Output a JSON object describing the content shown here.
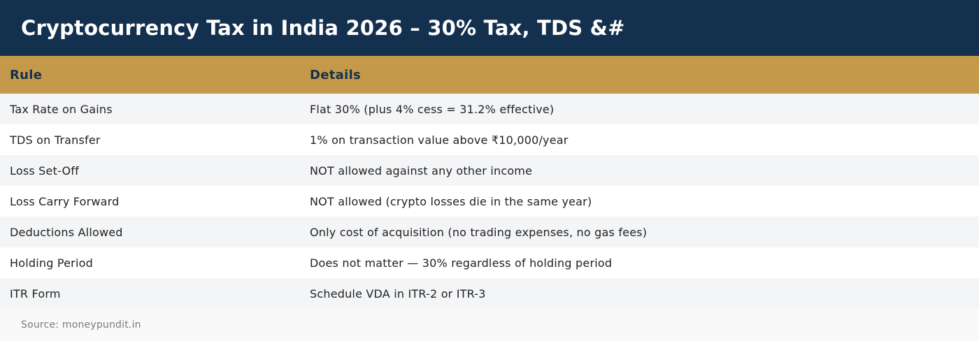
{
  "title": "Cryptocurrency Tax in India 2026 – 30% Tax, TDS &#",
  "table": {
    "headers": [
      "Rule",
      "Details"
    ],
    "rows": [
      [
        "Tax Rate on Gains",
        "Flat 30% (plus 4% cess = 31.2% effective)"
      ],
      [
        "TDS on Transfer",
        "1% on transaction value above ₹10,000/year"
      ],
      [
        "Loss Set-Off",
        "NOT allowed against any other income"
      ],
      [
        "Loss Carry Forward",
        "NOT allowed (crypto losses die in the same year)"
      ],
      [
        "Deductions Allowed",
        "Only cost of acquisition (no trading expenses, no gas fees)"
      ],
      [
        "Holding Period",
        "Does not matter — 30% regardless of holding period"
      ],
      [
        "ITR Form",
        "Schedule VDA in ITR-2 or ITR-3"
      ]
    ]
  },
  "source": "Source: moneypundit.in",
  "colors": {
    "title_bg": "#13304e",
    "header_bg": "#c49a4a",
    "row_alt_bg": "#f4f5f7"
  }
}
